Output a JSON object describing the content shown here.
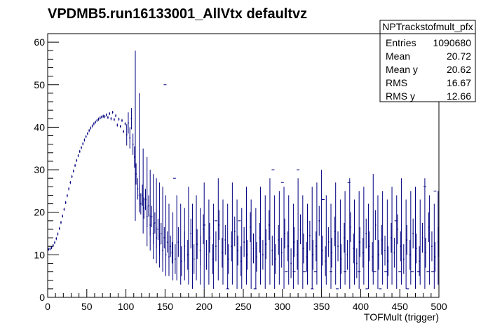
{
  "chart_data": {
    "type": "scatter",
    "title": "VPDMB5.run16133001_AllVtx defaultvz",
    "xlabel": "TOFMult (trigger)",
    "ylabel": "",
    "xlim": [
      0,
      500
    ],
    "ylim": [
      0,
      62
    ],
    "x_ticks": [
      0,
      50,
      100,
      150,
      200,
      250,
      300,
      350,
      400,
      450,
      500
    ],
    "y_ticks": [
      0,
      10,
      20,
      30,
      40,
      50,
      60
    ],
    "grid": false,
    "legend": "none",
    "series_color": "#000080",
    "stats_box": {
      "name": "NPTrackstofmult_pfx",
      "rows": [
        {
          "label": "Entries",
          "value": "1090680"
        },
        {
          "label": "Mean",
          "value": "20.72"
        },
        {
          "label": "Mean y",
          "value": "20.62"
        },
        {
          "label": "RMS",
          "value": "16.67"
        },
        {
          "label": "RMS y",
          "value": "12.66"
        }
      ]
    },
    "profile_points": [
      [
        1,
        11.3
      ],
      [
        3,
        11.4
      ],
      [
        5,
        11.7
      ],
      [
        7,
        12.2
      ],
      [
        9,
        12.9
      ],
      [
        11,
        13.8
      ],
      [
        13,
        14.9
      ],
      [
        15,
        16.2
      ],
      [
        17,
        17.6
      ],
      [
        19,
        19.1
      ],
      [
        21,
        20.7
      ],
      [
        23,
        22.3
      ],
      [
        25,
        23.9
      ],
      [
        27,
        25.5
      ],
      [
        29,
        27.0
      ],
      [
        31,
        28.4
      ],
      [
        33,
        29.7
      ],
      [
        35,
        31.0
      ],
      [
        37,
        32.2
      ],
      [
        39,
        33.3
      ],
      [
        41,
        34.3
      ],
      [
        43,
        35.2
      ],
      [
        45,
        36.1
      ],
      [
        47,
        37.0
      ],
      [
        49,
        37.8
      ],
      [
        51,
        38.5
      ],
      [
        53,
        39.2
      ],
      [
        55,
        39.8
      ],
      [
        57,
        40.3
      ],
      [
        59,
        40.8
      ],
      [
        61,
        41.2
      ],
      [
        63,
        41.6
      ],
      [
        65,
        41.9
      ],
      [
        67,
        42.2
      ],
      [
        69,
        42.4
      ],
      [
        71,
        42.6
      ],
      [
        73,
        42.5
      ],
      [
        75,
        42.9
      ],
      [
        77,
        42.3
      ],
      [
        79,
        43.2
      ],
      [
        81,
        42.0
      ],
      [
        83,
        43.5
      ],
      [
        85,
        41.8
      ],
      [
        87,
        42.7
      ],
      [
        89,
        40.5
      ],
      [
        91,
        41.9
      ],
      [
        93,
        40.2
      ],
      [
        95,
        41.6
      ],
      [
        97,
        39.0
      ],
      [
        99,
        40.8
      ],
      [
        101,
        38.2
      ],
      [
        103,
        41.0
      ],
      [
        105,
        37.5
      ],
      [
        107,
        42.0
      ],
      [
        109,
        36.0
      ],
      [
        111,
        33.0
      ],
      [
        113,
        29.0
      ],
      [
        115,
        25.5
      ],
      [
        117,
        24.0
      ],
      [
        119,
        22.0
      ],
      [
        121,
        24.0
      ],
      [
        123,
        21.0
      ],
      [
        125,
        23.0
      ],
      [
        127,
        19.0
      ],
      [
        129,
        21.5
      ],
      [
        131,
        17.0
      ],
      [
        133,
        19.0
      ],
      [
        135,
        15.0
      ],
      [
        137,
        17.5
      ],
      [
        139,
        14.0
      ],
      [
        141,
        16.0
      ],
      [
        143,
        12.5
      ],
      [
        145,
        15.0
      ],
      [
        147,
        11.0
      ],
      [
        149,
        14.0
      ],
      [
        151,
        10.0
      ],
      [
        153,
        13.0
      ],
      [
        155,
        9.5
      ],
      [
        157,
        12.0
      ],
      [
        159,
        10.5
      ],
      [
        163,
        9.0
      ],
      [
        167,
        13.0
      ],
      [
        171,
        8.5
      ],
      [
        175,
        12.0
      ],
      [
        179,
        10.0
      ],
      [
        183,
        15.0
      ],
      [
        187,
        9.0
      ],
      [
        191,
        12.5
      ],
      [
        195,
        11.0
      ],
      [
        199,
        16.0
      ],
      [
        203,
        10.0
      ],
      [
        207,
        14.0
      ],
      [
        211,
        9.0
      ],
      [
        215,
        12.0
      ],
      [
        219,
        17.0
      ],
      [
        223,
        10.5
      ],
      [
        227,
        13.5
      ],
      [
        231,
        9.0
      ],
      [
        235,
        12.0
      ],
      [
        239,
        15.5
      ],
      [
        243,
        11.0
      ],
      [
        247,
        8.5
      ],
      [
        251,
        13.0
      ],
      [
        255,
        10.0
      ],
      [
        259,
        16.5
      ],
      [
        263,
        11.5
      ],
      [
        267,
        9.5
      ],
      [
        271,
        14.0
      ],
      [
        275,
        10.0
      ],
      [
        279,
        12.5
      ],
      [
        283,
        17.0
      ],
      [
        287,
        11.0
      ],
      [
        291,
        9.0
      ],
      [
        295,
        13.5
      ],
      [
        299,
        10.5
      ],
      [
        303,
        15.0
      ],
      [
        307,
        12.0
      ],
      [
        311,
        8.0
      ],
      [
        315,
        13.0
      ],
      [
        319,
        10.0
      ],
      [
        323,
        16.0
      ],
      [
        327,
        11.5
      ],
      [
        331,
        9.5
      ],
      [
        335,
        14.5
      ],
      [
        339,
        10.0
      ],
      [
        343,
        12.0
      ],
      [
        347,
        18.0
      ],
      [
        351,
        11.0
      ],
      [
        355,
        8.5
      ],
      [
        359,
        13.0
      ],
      [
        363,
        10.5
      ],
      [
        367,
        15.5
      ],
      [
        371,
        12.0
      ],
      [
        375,
        9.0
      ],
      [
        379,
        14.0
      ],
      [
        383,
        10.0
      ],
      [
        387,
        16.5
      ],
      [
        391,
        11.5
      ],
      [
        395,
        8.0
      ],
      [
        399,
        13.0
      ],
      [
        403,
        10.5
      ],
      [
        407,
        15.0
      ],
      [
        411,
        12.0
      ],
      [
        415,
        9.5
      ],
      [
        419,
        17.0
      ],
      [
        423,
        10.0
      ],
      [
        427,
        13.5
      ],
      [
        431,
        11.0
      ],
      [
        435,
        8.5
      ],
      [
        439,
        14.0
      ],
      [
        443,
        10.5
      ],
      [
        447,
        16.0
      ],
      [
        451,
        12.0
      ],
      [
        455,
        9.0
      ],
      [
        459,
        13.5
      ],
      [
        463,
        10.0
      ],
      [
        467,
        15.0
      ],
      [
        471,
        11.5
      ],
      [
        475,
        8.5
      ],
      [
        479,
        14.0
      ],
      [
        483,
        10.5
      ],
      [
        487,
        16.5
      ],
      [
        491,
        12.0
      ],
      [
        495,
        9.5
      ],
      [
        499,
        13.0
      ]
    ],
    "error_bars": [
      [
        112,
        18,
        58
      ],
      [
        117,
        20,
        48
      ],
      [
        122,
        15,
        35
      ],
      [
        127,
        12,
        33
      ],
      [
        131,
        11,
        30
      ],
      [
        135,
        9,
        29
      ],
      [
        139,
        8,
        28
      ],
      [
        143,
        7,
        27
      ],
      [
        147,
        6,
        26
      ],
      [
        151,
        5,
        24
      ],
      [
        155,
        5,
        22
      ],
      [
        160,
        4,
        20
      ],
      [
        165,
        4,
        24
      ],
      [
        170,
        3,
        22
      ],
      [
        175,
        4,
        21
      ],
      [
        180,
        3,
        26
      ],
      [
        185,
        2,
        22
      ],
      [
        190,
        4,
        24
      ],
      [
        195,
        3,
        21
      ],
      [
        200,
        2,
        27
      ],
      [
        206,
        3,
        23
      ],
      [
        212,
        2,
        22
      ],
      [
        218,
        4,
        28
      ],
      [
        224,
        3,
        23
      ],
      [
        230,
        2,
        22
      ],
      [
        236,
        3,
        27
      ],
      [
        242,
        2,
        23
      ],
      [
        248,
        2,
        21
      ],
      [
        254,
        3,
        26
      ],
      [
        260,
        2,
        23
      ],
      [
        266,
        2,
        21
      ],
      [
        272,
        3,
        26
      ],
      [
        278,
        2,
        24
      ],
      [
        284,
        3,
        28
      ],
      [
        290,
        2,
        24
      ],
      [
        296,
        3,
        25
      ],
      [
        302,
        2,
        26
      ],
      [
        308,
        3,
        24
      ],
      [
        314,
        2,
        22
      ],
      [
        320,
        3,
        28
      ],
      [
        326,
        2,
        24
      ],
      [
        332,
        3,
        22
      ],
      [
        338,
        2,
        26
      ],
      [
        344,
        3,
        27
      ],
      [
        350,
        2,
        30
      ],
      [
        356,
        3,
        24
      ],
      [
        362,
        2,
        22
      ],
      [
        368,
        3,
        27
      ],
      [
        374,
        2,
        23
      ],
      [
        380,
        3,
        25
      ],
      [
        386,
        2,
        28
      ],
      [
        392,
        3,
        23
      ],
      [
        398,
        2,
        25
      ],
      [
        404,
        3,
        26
      ],
      [
        410,
        2,
        22
      ],
      [
        416,
        3,
        29
      ],
      [
        422,
        2,
        24
      ],
      [
        428,
        3,
        25
      ],
      [
        434,
        2,
        23
      ],
      [
        440,
        3,
        26
      ],
      [
        446,
        2,
        24
      ],
      [
        452,
        3,
        28
      ],
      [
        458,
        2,
        23
      ],
      [
        464,
        3,
        25
      ],
      [
        470,
        2,
        26
      ],
      [
        476,
        3,
        23
      ],
      [
        482,
        2,
        28
      ],
      [
        488,
        3,
        24
      ],
      [
        494,
        2,
        22
      ],
      [
        499,
        3,
        25
      ]
    ],
    "outlier_dots": [
      [
        150,
        50
      ],
      [
        162,
        28
      ],
      [
        200,
        17
      ],
      [
        215,
        18
      ],
      [
        230,
        2
      ],
      [
        245,
        18
      ],
      [
        265,
        2
      ],
      [
        288,
        30
      ],
      [
        300,
        27
      ],
      [
        320,
        30
      ],
      [
        338,
        2
      ],
      [
        352,
        23
      ],
      [
        370,
        2
      ],
      [
        385,
        27
      ],
      [
        408,
        2
      ],
      [
        425,
        2
      ],
      [
        445,
        18
      ],
      [
        460,
        2
      ],
      [
        482,
        26
      ],
      [
        495,
        25
      ],
      [
        305,
        6
      ],
      [
        315,
        6
      ],
      [
        328,
        6
      ],
      [
        342,
        6
      ],
      [
        362,
        6
      ],
      [
        380,
        6
      ],
      [
        398,
        6
      ],
      [
        418,
        6
      ],
      [
        432,
        6
      ],
      [
        450,
        6
      ],
      [
        466,
        6
      ],
      [
        474,
        6
      ],
      [
        486,
        6
      ],
      [
        492,
        6
      ]
    ]
  }
}
